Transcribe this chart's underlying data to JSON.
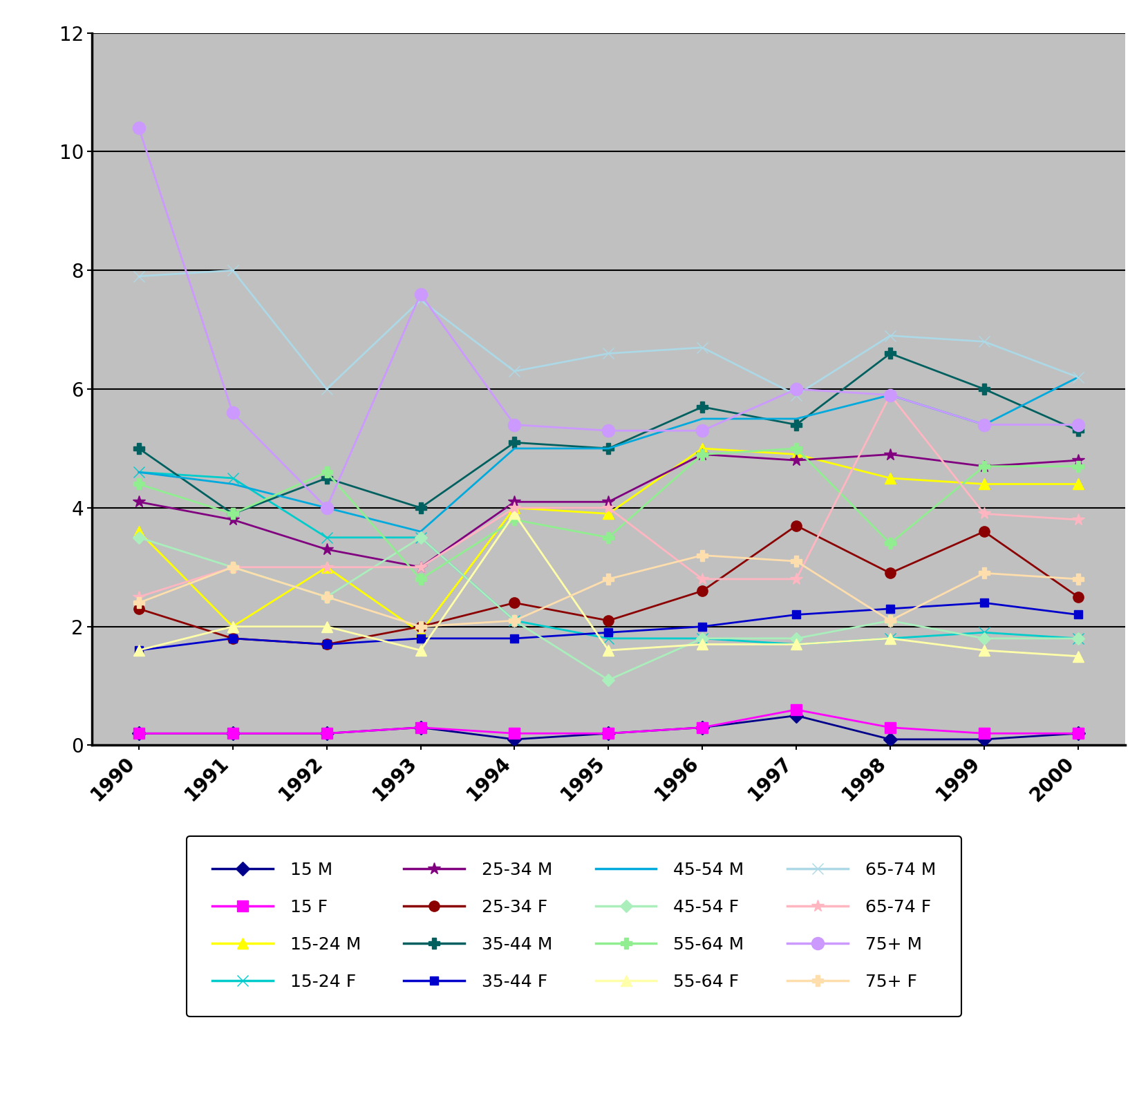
{
  "years": [
    1990,
    1991,
    1992,
    1993,
    1994,
    1995,
    1996,
    1997,
    1998,
    1999,
    2000
  ],
  "series": {
    "15 M": {
      "values": [
        0.2,
        0.2,
        0.2,
        0.3,
        0.1,
        0.2,
        0.3,
        0.5,
        0.1,
        0.1,
        0.2
      ],
      "color": "#00008B",
      "marker": "D",
      "markersize": 10,
      "linewidth": 2.0
    },
    "15 F": {
      "values": [
        0.2,
        0.2,
        0.2,
        0.3,
        0.2,
        0.2,
        0.3,
        0.6,
        0.3,
        0.2,
        0.2
      ],
      "color": "#FF00FF",
      "marker": "s",
      "markersize": 11,
      "linewidth": 2.0
    },
    "15-24 M": {
      "values": [
        3.6,
        2.0,
        3.0,
        1.9,
        4.0,
        3.9,
        5.0,
        4.9,
        4.5,
        4.4,
        4.4
      ],
      "color": "#FFFF00",
      "marker": "^",
      "markersize": 11,
      "linewidth": 2.0
    },
    "15-24 F": {
      "values": [
        4.6,
        4.5,
        3.5,
        3.5,
        2.1,
        1.8,
        1.8,
        1.7,
        1.8,
        1.9,
        1.8
      ],
      "color": "#00CCCC",
      "marker": "x",
      "markersize": 11,
      "linewidth": 2.0
    },
    "25-34 M": {
      "values": [
        4.1,
        3.8,
        3.3,
        3.0,
        4.1,
        4.1,
        4.9,
        4.8,
        4.9,
        4.7,
        4.8
      ],
      "color": "#800080",
      "marker": "*",
      "markersize": 13,
      "linewidth": 2.0
    },
    "25-34 F": {
      "values": [
        2.3,
        1.8,
        1.7,
        2.0,
        2.4,
        2.1,
        2.6,
        3.7,
        2.9,
        3.6,
        2.5
      ],
      "color": "#8B0000",
      "marker": "o",
      "markersize": 11,
      "linewidth": 2.0
    },
    "35-44 M": {
      "values": [
        5.0,
        3.9,
        4.5,
        4.0,
        5.1,
        5.0,
        5.7,
        5.4,
        6.6,
        6.0,
        5.3
      ],
      "color": "#006060",
      "marker": "P",
      "markersize": 11,
      "linewidth": 2.0
    },
    "35-44 F": {
      "values": [
        1.6,
        1.8,
        1.7,
        1.8,
        1.8,
        1.9,
        2.0,
        2.2,
        2.3,
        2.4,
        2.2
      ],
      "color": "#0000CD",
      "marker": "s",
      "markersize": 8,
      "linewidth": 2.0
    },
    "45-54 M": {
      "values": [
        4.6,
        4.4,
        4.0,
        3.6,
        5.0,
        5.0,
        5.5,
        5.5,
        5.9,
        5.4,
        6.2
      ],
      "color": "#00AADD",
      "marker": "None",
      "markersize": 7,
      "linewidth": 2.0
    },
    "45-54 F": {
      "values": [
        3.5,
        3.0,
        2.5,
        3.5,
        2.1,
        1.1,
        1.8,
        1.8,
        2.1,
        1.8,
        1.8
      ],
      "color": "#AAEEBB",
      "marker": "D",
      "markersize": 9,
      "linewidth": 2.0
    },
    "55-64 M": {
      "values": [
        4.4,
        3.9,
        4.6,
        2.8,
        3.8,
        3.5,
        4.9,
        5.0,
        3.4,
        4.7,
        4.7
      ],
      "color": "#90EE90",
      "marker": "P",
      "markersize": 11,
      "linewidth": 2.0
    },
    "55-64 F": {
      "values": [
        1.6,
        2.0,
        2.0,
        1.6,
        3.9,
        1.6,
        1.7,
        1.7,
        1.8,
        1.6,
        1.5
      ],
      "color": "#FFFFAA",
      "marker": "^",
      "markersize": 11,
      "linewidth": 2.0
    },
    "65-74 M": {
      "values": [
        7.9,
        8.0,
        6.0,
        7.5,
        6.3,
        6.6,
        6.7,
        5.9,
        6.9,
        6.8,
        6.2
      ],
      "color": "#ADD8E6",
      "marker": "x",
      "markersize": 12,
      "linewidth": 2.0
    },
    "65-74 F": {
      "values": [
        2.5,
        3.0,
        3.0,
        3.0,
        4.0,
        4.0,
        2.8,
        2.8,
        5.9,
        3.9,
        3.8
      ],
      "color": "#FFB6C1",
      "marker": "*",
      "markersize": 13,
      "linewidth": 2.0
    },
    "75+ M": {
      "values": [
        10.4,
        5.6,
        4.0,
        7.6,
        5.4,
        5.3,
        5.3,
        6.0,
        5.9,
        5.4,
        5.4
      ],
      "color": "#CC99FF",
      "marker": "o",
      "markersize": 13,
      "linewidth": 2.0
    },
    "75+ F": {
      "values": [
        2.4,
        3.0,
        2.5,
        2.0,
        2.1,
        2.8,
        3.2,
        3.1,
        2.1,
        2.9,
        2.8
      ],
      "color": "#FFDEAD",
      "marker": "P",
      "markersize": 11,
      "linewidth": 2.0
    }
  },
  "ylim": [
    0,
    12
  ],
  "yticks": [
    0,
    2,
    4,
    6,
    8,
    10,
    12
  ],
  "background_color": "#C0C0C0",
  "tick_fontsize": 20,
  "legend_fontsize": 18
}
